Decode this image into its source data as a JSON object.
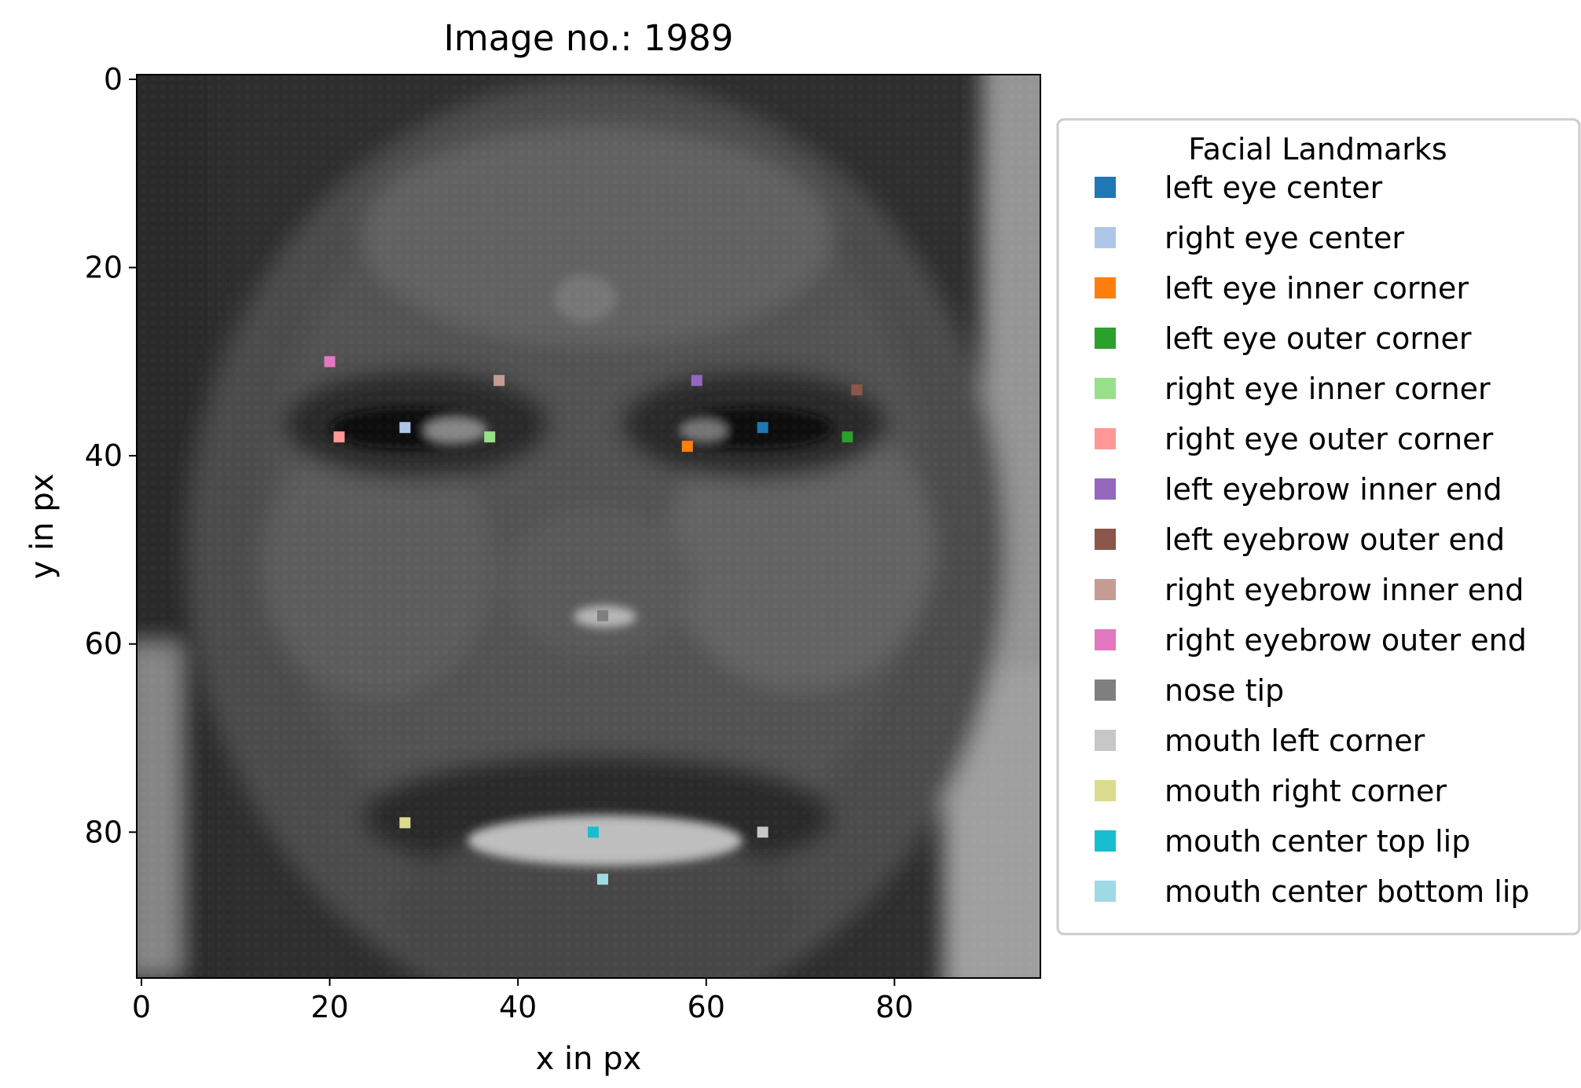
{
  "chart_data": {
    "type": "scatter",
    "title": "Image no.: 1989",
    "xlabel": "x in px",
    "ylabel": "y in px",
    "xlim": [
      -0.5,
      95.5
    ],
    "ylim": [
      95.5,
      -0.5
    ],
    "x_ticks": [
      0,
      20,
      40,
      60,
      80
    ],
    "y_ticks": [
      0,
      20,
      40,
      60,
      80
    ],
    "grid": false,
    "background": "grayscale face photograph (96x96 px)",
    "legend": {
      "title": "Facial Landmarks",
      "placement": "outside right"
    },
    "series": [
      {
        "name": "left eye center",
        "color": "#1f77b4",
        "x": 66,
        "y": 37
      },
      {
        "name": "right eye center",
        "color": "#aec7e8",
        "x": 28,
        "y": 37
      },
      {
        "name": "left eye inner corner",
        "color": "#ff7f0e",
        "x": 58,
        "y": 39
      },
      {
        "name": "left eye outer corner",
        "color": "#2ca02c",
        "x": 75,
        "y": 38
      },
      {
        "name": "right eye inner corner",
        "color": "#98df8a",
        "x": 37,
        "y": 38
      },
      {
        "name": "right eye outer corner",
        "color": "#ff9896",
        "x": 21,
        "y": 38
      },
      {
        "name": "left eyebrow inner end",
        "color": "#9467bd",
        "x": 59,
        "y": 32
      },
      {
        "name": "left eyebrow outer end",
        "color": "#8c564b",
        "x": 76,
        "y": 33
      },
      {
        "name": "right eyebrow inner end",
        "color": "#c49c94",
        "x": 38,
        "y": 32
      },
      {
        "name": "right eyebrow outer end",
        "color": "#e377c2",
        "x": 20,
        "y": 30
      },
      {
        "name": "nose tip",
        "color": "#7f7f7f",
        "x": 49,
        "y": 57
      },
      {
        "name": "mouth left corner",
        "color": "#c7c7c7",
        "x": 66,
        "y": 80
      },
      {
        "name": "mouth right corner",
        "color": "#dbdb8d",
        "x": 28,
        "y": 79
      },
      {
        "name": "mouth center top lip",
        "color": "#17becf",
        "x": 48,
        "y": 80
      },
      {
        "name": "mouth center bottom lip",
        "color": "#9edae5",
        "x": 49,
        "y": 85
      }
    ]
  }
}
